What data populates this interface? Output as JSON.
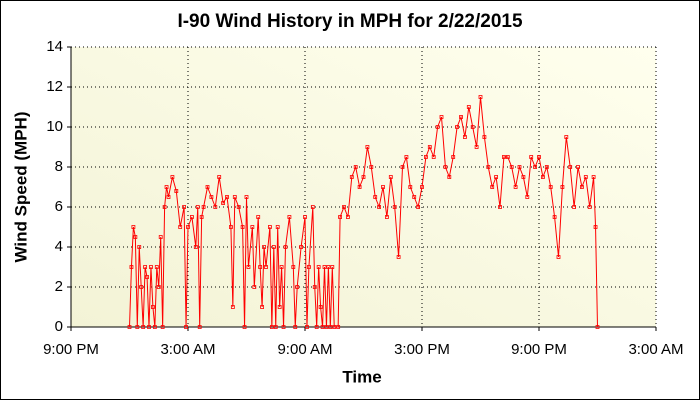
{
  "chart_data": {
    "type": "line",
    "title": "I-90 Wind History in MPH for 2/22/2015",
    "x_label": "Time",
    "y_label": "Wind Speed (MPH)",
    "color": "#ff0000",
    "grid": true,
    "xlim": [
      0,
      30
    ],
    "xticks": [
      {
        "value": 0,
        "label": "9:00 PM"
      },
      {
        "value": 6,
        "label": "3:00 AM"
      },
      {
        "value": 12,
        "label": "9:00 AM"
      },
      {
        "value": 18,
        "label": "3:00 PM"
      },
      {
        "value": 24,
        "label": "9:00 PM"
      },
      {
        "value": 30,
        "label": "3:00 AM"
      }
    ],
    "ylim": [
      0,
      14
    ],
    "yticks": [
      0,
      2,
      4,
      6,
      8,
      10,
      12,
      14
    ],
    "x": [
      3.0,
      3.1,
      3.2,
      3.3,
      3.4,
      3.5,
      3.6,
      3.7,
      3.8,
      3.9,
      4.0,
      4.1,
      4.2,
      4.3,
      4.4,
      4.5,
      4.6,
      4.7,
      4.8,
      4.9,
      5.0,
      5.2,
      5.4,
      5.6,
      5.8,
      5.9,
      6.0,
      6.2,
      6.4,
      6.5,
      6.6,
      6.7,
      6.8,
      7.0,
      7.2,
      7.4,
      7.6,
      7.8,
      8.0,
      8.2,
      8.3,
      8.4,
      8.6,
      8.8,
      8.9,
      9.0,
      9.1,
      9.3,
      9.4,
      9.6,
      9.7,
      9.8,
      9.9,
      10.0,
      10.2,
      10.3,
      10.4,
      10.5,
      10.6,
      10.7,
      10.8,
      10.9,
      11.0,
      11.2,
      11.4,
      11.5,
      11.6,
      11.8,
      12.0,
      12.1,
      12.2,
      12.4,
      12.5,
      12.6,
      12.7,
      12.8,
      12.9,
      13.0,
      13.1,
      13.2,
      13.3,
      13.4,
      13.5,
      13.7,
      13.8,
      14.0,
      14.2,
      14.4,
      14.6,
      14.8,
      15.0,
      15.2,
      15.4,
      15.6,
      15.8,
      16.0,
      16.2,
      16.4,
      16.6,
      16.8,
      17.0,
      17.2,
      17.4,
      17.6,
      17.8,
      18.0,
      18.2,
      18.4,
      18.6,
      18.8,
      19.0,
      19.2,
      19.4,
      19.6,
      19.8,
      20.0,
      20.2,
      20.4,
      20.6,
      20.8,
      21.0,
      21.2,
      21.4,
      21.6,
      21.8,
      22.0,
      22.2,
      22.4,
      22.6,
      22.8,
      23.0,
      23.2,
      23.4,
      23.6,
      23.8,
      24.0,
      24.2,
      24.4,
      24.6,
      24.8,
      25.0,
      25.2,
      25.4,
      25.6,
      25.8,
      26.0,
      26.2,
      26.4,
      26.6,
      26.8,
      26.9,
      27.0
    ],
    "values": [
      0,
      3,
      5,
      4.5,
      0,
      4,
      2,
      0,
      3,
      2.5,
      0,
      3,
      1,
      0,
      3,
      2,
      4.5,
      0,
      6,
      7,
      6.5,
      7.5,
      6.8,
      5,
      6,
      0,
      5,
      5.5,
      4,
      6,
      0,
      5.5,
      6,
      7,
      6.5,
      6,
      7.5,
      6.2,
      6.5,
      5,
      1,
      6.5,
      6,
      5,
      0,
      6.5,
      3,
      5,
      2,
      5.5,
      3,
      1,
      4,
      3,
      5,
      0,
      4,
      0,
      5,
      1,
      3,
      0,
      4,
      5.5,
      3,
      0,
      2,
      4,
      5.5,
      0,
      3,
      6,
      2,
      0,
      3,
      1,
      0,
      3,
      0,
      3,
      0,
      3,
      0,
      0,
      5.5,
      6,
      5.5,
      7.5,
      8,
      7,
      7.5,
      9,
      8,
      6.5,
      6,
      7,
      5.5,
      7.5,
      6,
      3.5,
      8,
      8.5,
      7,
      6.5,
      6,
      7,
      8.5,
      9,
      8.5,
      10,
      10.5,
      8,
      7.5,
      8.5,
      10,
      10.5,
      9.5,
      11,
      10,
      9,
      11.5,
      9.5,
      8,
      7,
      7.5,
      6,
      8.5,
      8.5,
      8,
      7,
      8,
      7.5,
      6.5,
      8.5,
      8,
      8.5,
      7.5,
      8,
      7,
      5.5,
      3.5,
      7,
      9.5,
      8,
      6,
      8,
      7,
      7.5,
      6,
      7.5,
      5,
      0
    ]
  }
}
